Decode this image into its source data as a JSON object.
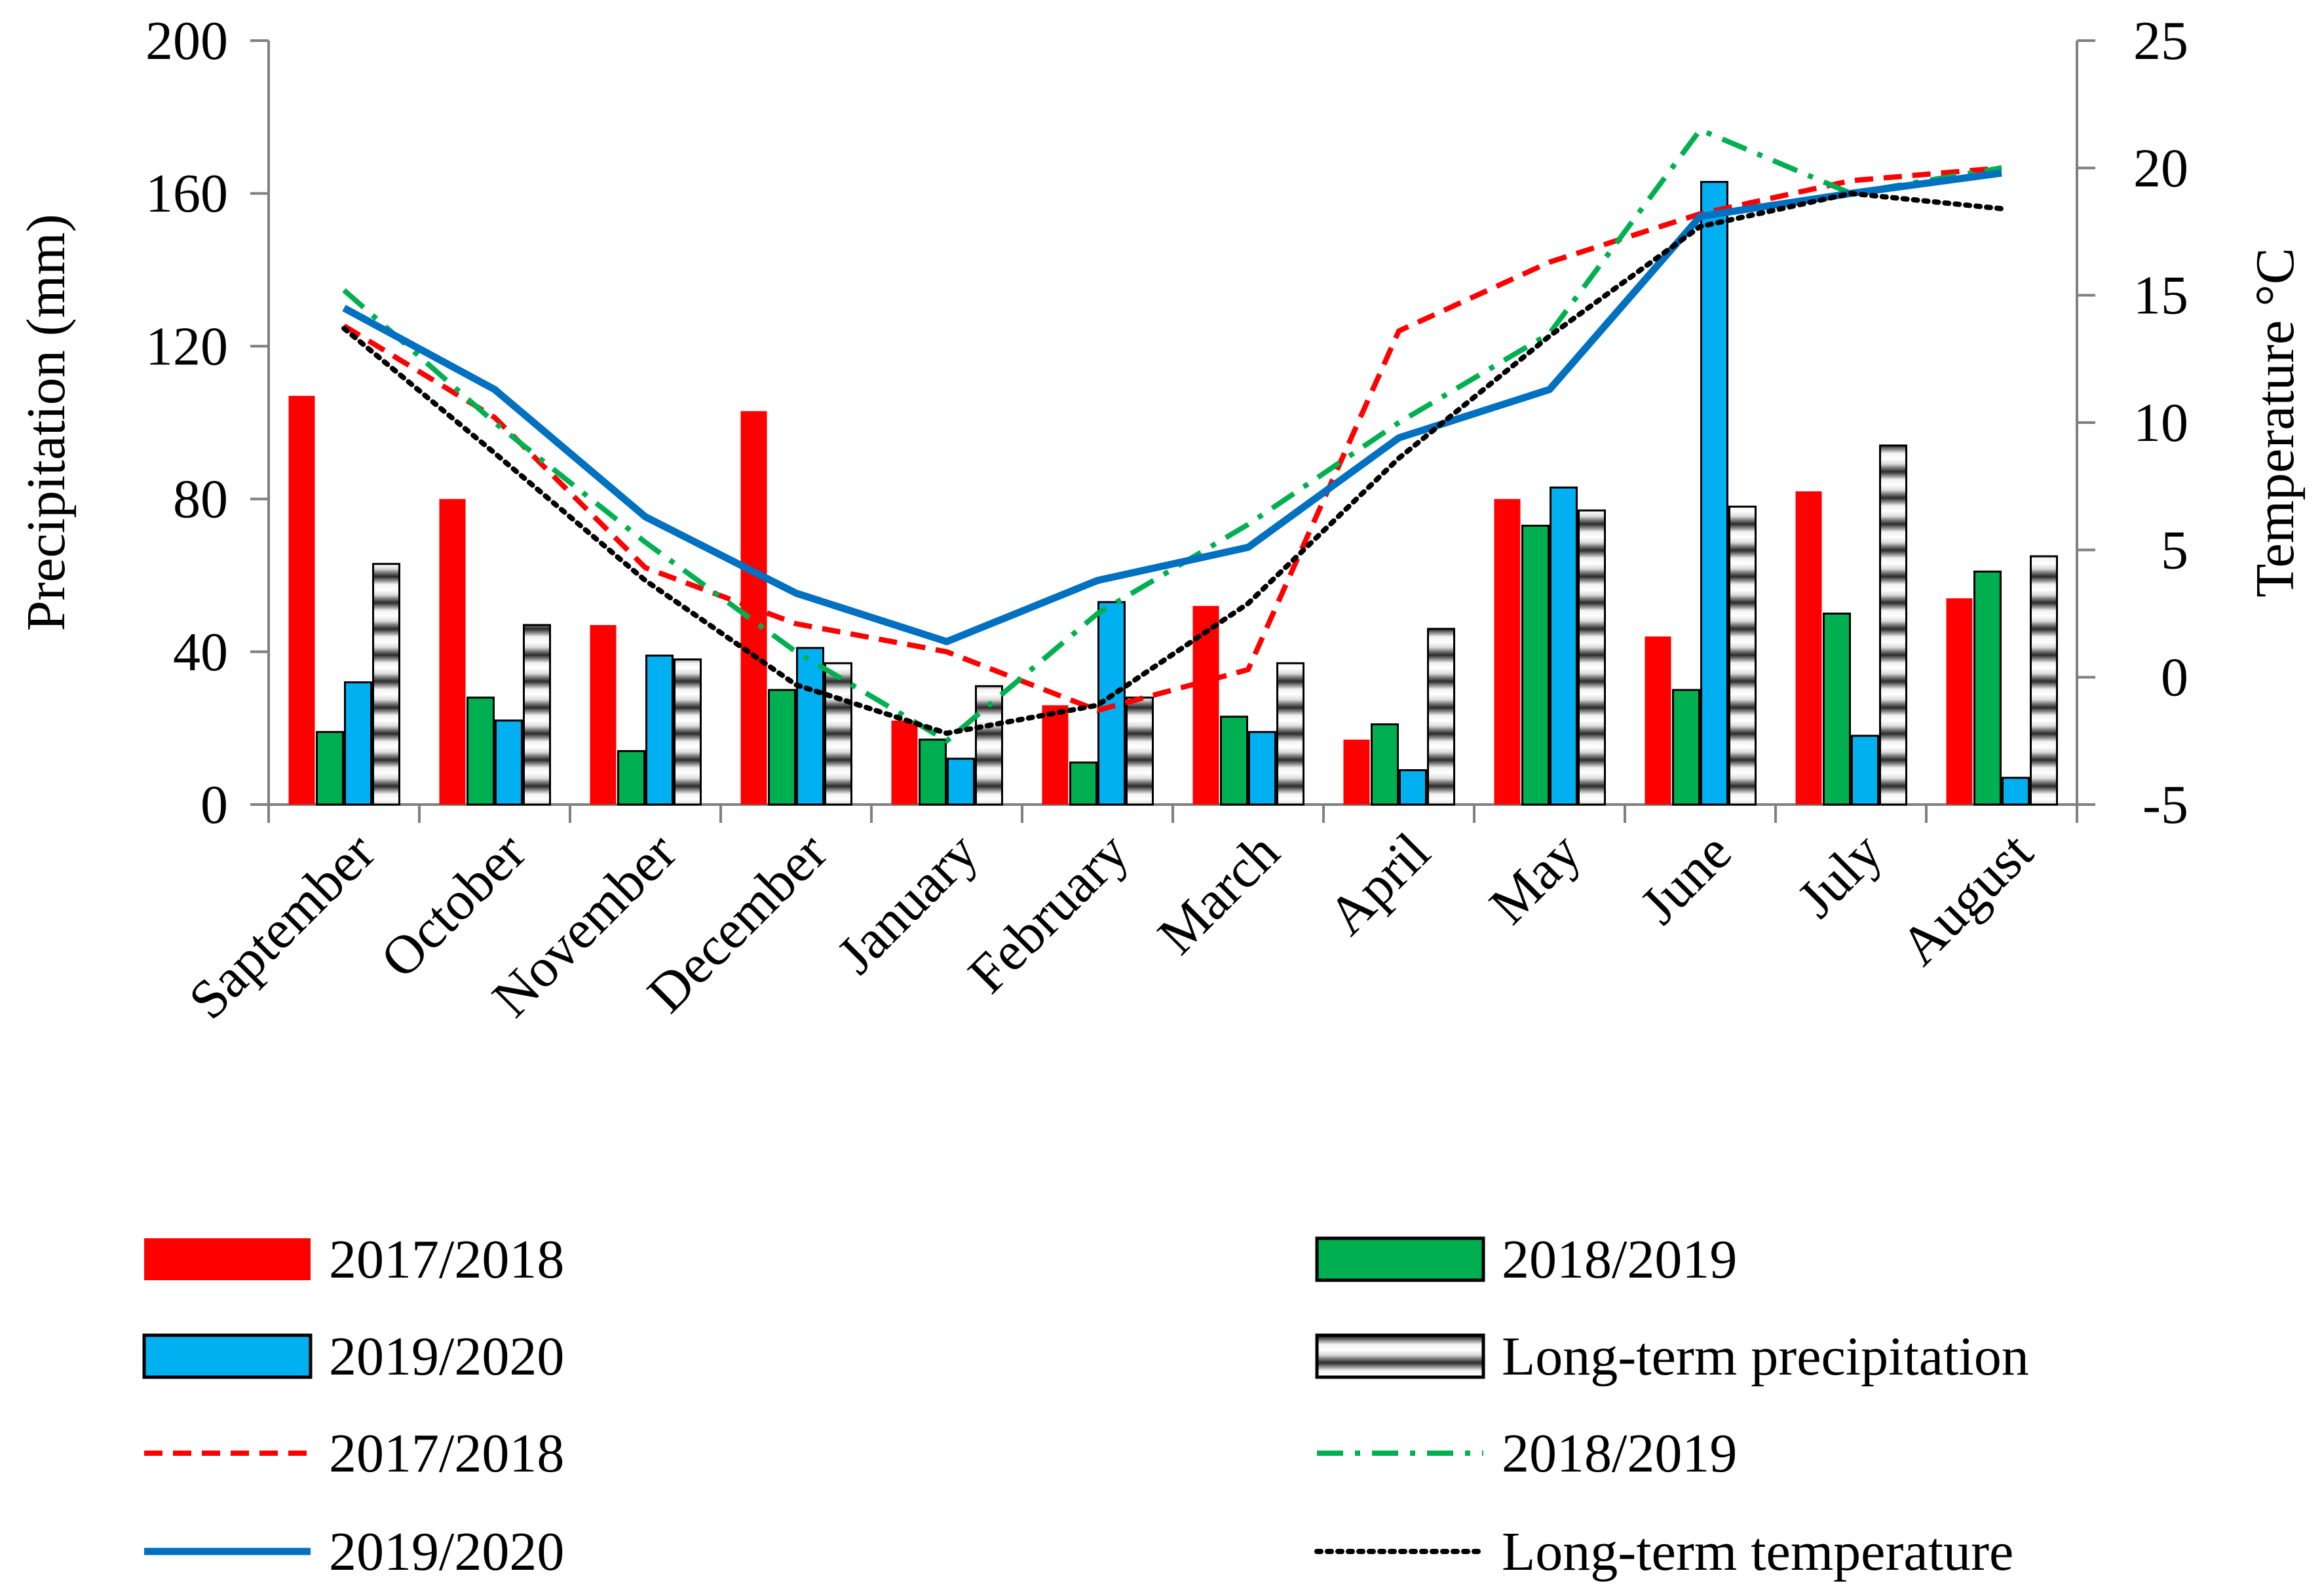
{
  "chart_data": {
    "type": "bar+line",
    "categories": [
      "Saptember",
      "October",
      "November",
      "December",
      "January",
      "February",
      "March",
      "April",
      "May",
      "June",
      "July",
      "August"
    ],
    "left_axis": {
      "label": "Precipitation (mm)",
      "ylim": [
        0,
        200
      ],
      "ticks": [
        0,
        40,
        80,
        120,
        160,
        200
      ]
    },
    "right_axis": {
      "label": "Temperature °C",
      "ylim": [
        -5,
        25
      ],
      "ticks": [
        -5,
        0,
        5,
        10,
        15,
        20,
        25
      ]
    },
    "bar_series": [
      {
        "name": "2017/2018",
        "color": "#ff0000",
        "style": "solid",
        "values": [
          107,
          80,
          47,
          103,
          22,
          26,
          52,
          17,
          80,
          44,
          82,
          54
        ]
      },
      {
        "name": "2018/2019",
        "color": "#00b050",
        "style": "solid",
        "values": [
          19,
          28,
          14,
          30,
          17,
          11,
          23,
          21,
          73,
          30,
          50,
          61
        ]
      },
      {
        "name": "2019/2020",
        "color": "#00b0f0",
        "style": "solid",
        "values": [
          32,
          22,
          39,
          41,
          12,
          53,
          19,
          9,
          83,
          163,
          18,
          7
        ]
      },
      {
        "name": "Long-term precipitation",
        "color": "#bfbfbf",
        "style": "striped",
        "values": [
          63,
          47,
          38,
          37,
          31,
          28,
          37,
          46,
          77,
          78,
          94,
          65
        ]
      }
    ],
    "line_series": [
      {
        "name": "2017/2018",
        "color": "#ff0000",
        "dash": "dashed",
        "values": [
          13.8,
          10.2,
          4.3,
          2.1,
          1.0,
          -1.3,
          0.3,
          13.6,
          16.3,
          18.2,
          19.5,
          20.0
        ]
      },
      {
        "name": "2018/2019",
        "color": "#00b050",
        "dash": "dashdot",
        "values": [
          15.2,
          10.0,
          5.3,
          1.0,
          -2.5,
          2.5,
          6.0,
          10.0,
          13.5,
          21.5,
          19.0,
          20.0
        ]
      },
      {
        "name": "2019/2020",
        "color": "#0070c0",
        "dash": "solid",
        "values": [
          14.5,
          11.3,
          6.3,
          3.3,
          1.4,
          3.8,
          5.1,
          9.4,
          11.3,
          18.1,
          19.0,
          19.8
        ]
      },
      {
        "name": "Long-term temperature",
        "color": "#000000",
        "dash": "dotted",
        "values": [
          13.7,
          8.8,
          3.8,
          -0.3,
          -2.2,
          -1.1,
          2.9,
          8.6,
          13.4,
          17.7,
          19.0,
          18.4
        ]
      }
    ],
    "legend_position": "bottom"
  }
}
